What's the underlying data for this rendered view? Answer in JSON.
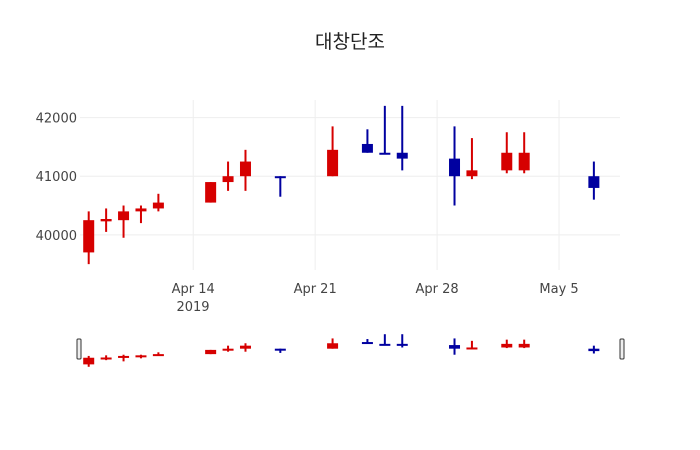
{
  "chart_data": {
    "type": "candlestick",
    "title": "대창단조",
    "xlabel": "",
    "ylabel": "",
    "ylim": [
      39400,
      42300
    ],
    "xlim": [
      "2019-04-07T12:00",
      "2019-05-08T12:00"
    ],
    "y_ticks": [
      40000,
      41000,
      42000
    ],
    "y_tick_labels": [
      "40000",
      "41000",
      "42000"
    ],
    "x_ticks": [
      "2019-04-14",
      "2019-04-21",
      "2019-04-28",
      "2019-05-05"
    ],
    "x_tick_labels": [
      "Apr 14",
      "Apr 21",
      "Apr 28",
      "May 5"
    ],
    "x_tick_sublabel": "2019",
    "grid": true,
    "rangeslider": true,
    "increasing_color": "#d60000",
    "decreasing_color": "#0000a0",
    "series": [
      {
        "date": "2019-04-08",
        "open": 39700,
        "high": 40400,
        "low": 39500,
        "close": 40250
      },
      {
        "date": "2019-04-09",
        "open": 40230,
        "high": 40450,
        "low": 40050,
        "close": 40270
      },
      {
        "date": "2019-04-10",
        "open": 40250,
        "high": 40500,
        "low": 39950,
        "close": 40400
      },
      {
        "date": "2019-04-11",
        "open": 40400,
        "high": 40500,
        "low": 40200,
        "close": 40450
      },
      {
        "date": "2019-04-12",
        "open": 40450,
        "high": 40700,
        "low": 40400,
        "close": 40550
      },
      {
        "date": "2019-04-15",
        "open": 40550,
        "high": 40900,
        "low": 40550,
        "close": 40900
      },
      {
        "date": "2019-04-16",
        "open": 40900,
        "high": 41250,
        "low": 40750,
        "close": 41000
      },
      {
        "date": "2019-04-17",
        "open": 41000,
        "high": 41450,
        "low": 40750,
        "close": 41250
      },
      {
        "date": "2019-04-19",
        "open": 41000,
        "high": 41000,
        "low": 40650,
        "close": 40980
      },
      {
        "date": "2019-04-22",
        "open": 41000,
        "high": 41850,
        "low": 41000,
        "close": 41450
      },
      {
        "date": "2019-04-24",
        "open": 41550,
        "high": 41800,
        "low": 41400,
        "close": 41400
      },
      {
        "date": "2019-04-25",
        "open": 41400,
        "high": 42200,
        "low": 41380,
        "close": 41380
      },
      {
        "date": "2019-04-26",
        "open": 41400,
        "high": 42200,
        "low": 41100,
        "close": 41300
      },
      {
        "date": "2019-04-29",
        "open": 41300,
        "high": 41850,
        "low": 40500,
        "close": 41000
      },
      {
        "date": "2019-04-30",
        "open": 41000,
        "high": 41650,
        "low": 40950,
        "close": 41100
      },
      {
        "date": "2019-05-02",
        "open": 41100,
        "high": 41750,
        "low": 41050,
        "close": 41400
      },
      {
        "date": "2019-05-03",
        "open": 41100,
        "high": 41750,
        "low": 41050,
        "close": 41400
      },
      {
        "date": "2019-05-07",
        "open": 41000,
        "high": 41250,
        "low": 40600,
        "close": 40800
      }
    ]
  }
}
